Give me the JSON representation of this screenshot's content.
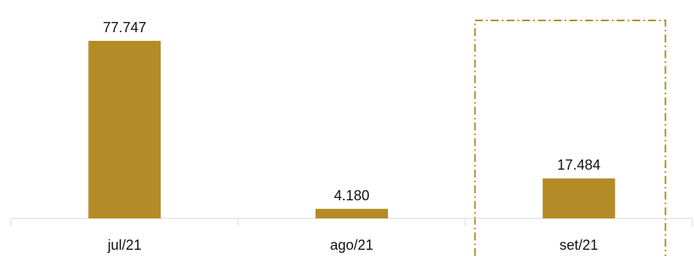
{
  "chart_data": {
    "type": "bar",
    "categories": [
      "jul/21",
      "ago/21",
      "set/21"
    ],
    "values": [
      77747,
      4180,
      17484
    ],
    "value_labels": [
      "77.747",
      "4.180",
      "17.484"
    ],
    "title": "",
    "xlabel": "",
    "ylabel": "",
    "ylim": [
      0,
      77747
    ],
    "grid": false,
    "legend": "none",
    "highlighted_category": "set/21",
    "colors": {
      "bar": "#B58B27",
      "highlight_border": "#B58B27",
      "axis": "#D9D9D9",
      "text": "#111111"
    }
  }
}
